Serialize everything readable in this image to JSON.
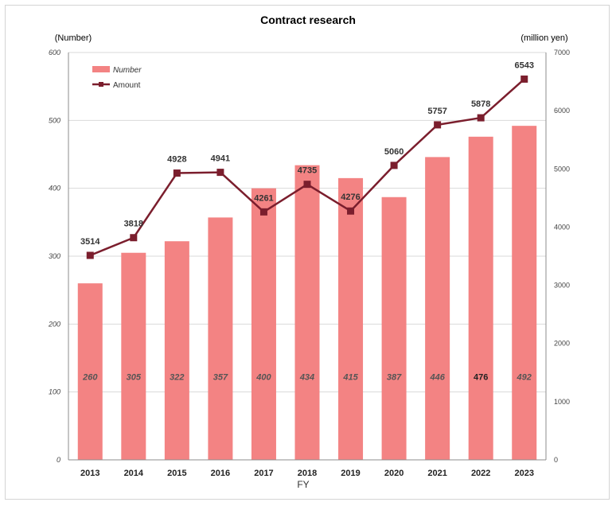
{
  "chart_data": {
    "type": "bar+line",
    "title": "Contract research",
    "xlabel": "FY",
    "y_left_label": "(Number)",
    "y_right_label": "(million yen)",
    "categories": [
      "2013",
      "2014",
      "2015",
      "2016",
      "2017",
      "2018",
      "2019",
      "2020",
      "2021",
      "2022",
      "2023"
    ],
    "series": [
      {
        "name": "Number",
        "type": "bar",
        "axis": "left",
        "color": "#f38383",
        "values": [
          260,
          305,
          322,
          357,
          400,
          434,
          415,
          387,
          446,
          476,
          492
        ]
      },
      {
        "name": "Amount",
        "type": "line",
        "axis": "right",
        "color": "#7b1e2d",
        "values": [
          3514,
          3818,
          4928,
          4941,
          4261,
          4735,
          4276,
          5060,
          5757,
          5878,
          6543
        ]
      }
    ],
    "ylim_left": [
      0,
      600
    ],
    "ylim_right": [
      0,
      7000
    ],
    "yticks_left": [
      "0",
      "100",
      "200",
      "300",
      "400",
      "500",
      "600"
    ],
    "yticks_right": [
      "0",
      "1000",
      "2000",
      "3000",
      "4000",
      "5000",
      "6000",
      "7000"
    ],
    "grid": true,
    "legend_position": "top-left"
  }
}
